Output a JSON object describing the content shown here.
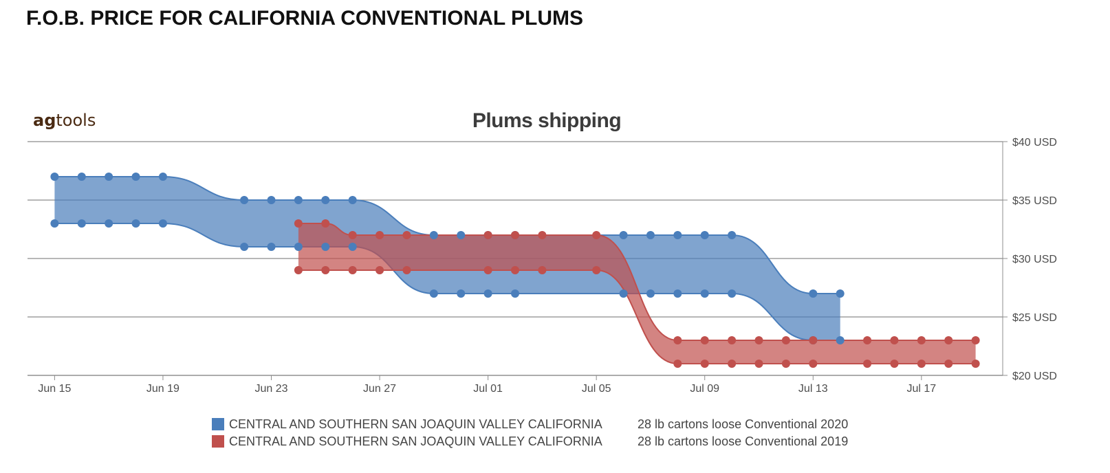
{
  "page": {
    "heading": "F.O.B. PRICE FOR CALIFORNIA CONVENTIONAL PLUMS"
  },
  "chart_data": {
    "type": "area",
    "subtype": "range band",
    "title": "Plums shipping",
    "logo": {
      "bold": "ag",
      "regular": "tools"
    },
    "xlabel": "",
    "ylabel": "",
    "x_axis": {
      "type": "date",
      "range": [
        "2020-06-14",
        "2020-07-20"
      ],
      "ticks": [
        {
          "date": "2020-06-15",
          "label": "Jun 15"
        },
        {
          "date": "2020-06-19",
          "label": "Jun 19"
        },
        {
          "date": "2020-06-23",
          "label": "Jun 23"
        },
        {
          "date": "2020-06-27",
          "label": "Jun 27"
        },
        {
          "date": "2020-07-01",
          "label": "Jul 01"
        },
        {
          "date": "2020-07-05",
          "label": "Jul 05"
        },
        {
          "date": "2020-07-09",
          "label": "Jul 09"
        },
        {
          "date": "2020-07-13",
          "label": "Jul 13"
        },
        {
          "date": "2020-07-17",
          "label": "Jul 17"
        }
      ]
    },
    "y_axis": {
      "position": "right",
      "range": [
        20,
        40
      ],
      "ticks": [
        {
          "value": 20,
          "label": "$20 USD"
        },
        {
          "value": 25,
          "label": "$25 USD"
        },
        {
          "value": 30,
          "label": "$30 USD"
        },
        {
          "value": 35,
          "label": "$35 USD"
        },
        {
          "value": 40,
          "label": "$40 USD"
        }
      ]
    },
    "grid": true,
    "legend_position": "bottom",
    "series": [
      {
        "name": "CENTRAL AND SOUTHERN SAN JOAQUIN VALLEY CALIFORNIA",
        "detail": "28 lb cartons loose Conventional 2020",
        "color": "#4a7ebb",
        "points": [
          {
            "date": "2020-06-15",
            "low": 33,
            "high": 37
          },
          {
            "date": "2020-06-16",
            "low": 33,
            "high": 37
          },
          {
            "date": "2020-06-17",
            "low": 33,
            "high": 37
          },
          {
            "date": "2020-06-18",
            "low": 33,
            "high": 37
          },
          {
            "date": "2020-06-19",
            "low": 33,
            "high": 37
          },
          {
            "date": "2020-06-22",
            "low": 31,
            "high": 35
          },
          {
            "date": "2020-06-23",
            "low": 31,
            "high": 35
          },
          {
            "date": "2020-06-24",
            "low": 31,
            "high": 35
          },
          {
            "date": "2020-06-25",
            "low": 31,
            "high": 35
          },
          {
            "date": "2020-06-26",
            "low": 31,
            "high": 35
          },
          {
            "date": "2020-06-29",
            "low": 27,
            "high": 32
          },
          {
            "date": "2020-06-30",
            "low": 27,
            "high": 32
          },
          {
            "date": "2020-07-01",
            "low": 27,
            "high": 32
          },
          {
            "date": "2020-07-02",
            "low": 27,
            "high": 32
          },
          {
            "date": "2020-07-06",
            "low": 27,
            "high": 32
          },
          {
            "date": "2020-07-07",
            "low": 27,
            "high": 32
          },
          {
            "date": "2020-07-08",
            "low": 27,
            "high": 32
          },
          {
            "date": "2020-07-09",
            "low": 27,
            "high": 32
          },
          {
            "date": "2020-07-10",
            "low": 27,
            "high": 32
          },
          {
            "date": "2020-07-13",
            "low": 23,
            "high": 27
          },
          {
            "date": "2020-07-14",
            "low": 23,
            "high": 27
          }
        ]
      },
      {
        "name": "CENTRAL AND SOUTHERN SAN JOAQUIN VALLEY CALIFORNIA",
        "detail": "28 lb cartons loose Conventional 2019",
        "color": "#c0504d",
        "points": [
          {
            "date": "2020-06-24",
            "low": 29,
            "high": 33
          },
          {
            "date": "2020-06-25",
            "low": 29,
            "high": 33
          },
          {
            "date": "2020-06-26",
            "low": 29,
            "high": 32
          },
          {
            "date": "2020-06-27",
            "low": 29,
            "high": 32
          },
          {
            "date": "2020-06-28",
            "low": 29,
            "high": 32
          },
          {
            "date": "2020-07-01",
            "low": 29,
            "high": 32
          },
          {
            "date": "2020-07-02",
            "low": 29,
            "high": 32
          },
          {
            "date": "2020-07-03",
            "low": 29,
            "high": 32
          },
          {
            "date": "2020-07-05",
            "low": 29,
            "high": 32
          },
          {
            "date": "2020-07-08",
            "low": 21,
            "high": 23
          },
          {
            "date": "2020-07-09",
            "low": 21,
            "high": 23
          },
          {
            "date": "2020-07-10",
            "low": 21,
            "high": 23
          },
          {
            "date": "2020-07-11",
            "low": 21,
            "high": 23
          },
          {
            "date": "2020-07-12",
            "low": 21,
            "high": 23
          },
          {
            "date": "2020-07-13",
            "low": 21,
            "high": 23
          },
          {
            "date": "2020-07-15",
            "low": 21,
            "high": 23
          },
          {
            "date": "2020-07-16",
            "low": 21,
            "high": 23
          },
          {
            "date": "2020-07-17",
            "low": 21,
            "high": 23
          },
          {
            "date": "2020-07-18",
            "low": 21,
            "high": 23
          },
          {
            "date": "2020-07-19",
            "low": 21,
            "high": 23
          }
        ]
      }
    ]
  }
}
